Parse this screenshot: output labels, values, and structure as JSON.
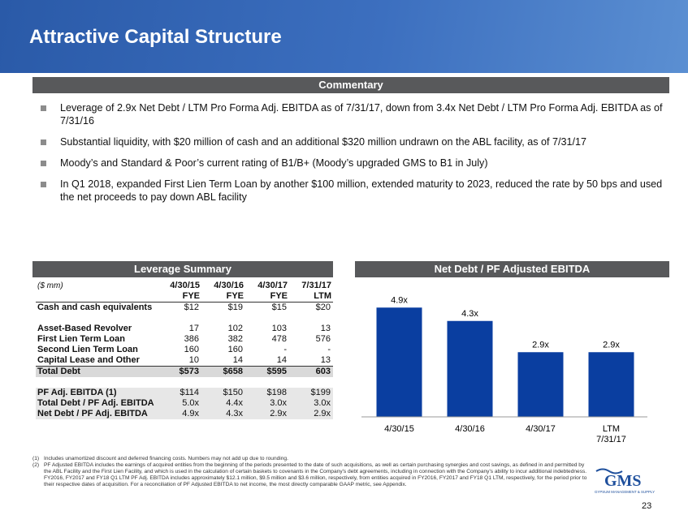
{
  "header": {
    "title": "Attractive Capital Structure"
  },
  "commentary": {
    "title": "Commentary",
    "bullets": [
      "Leverage of 2.9x Net Debt / LTM Pro Forma Adj. EBITDA as of 7/31/17, down from 3.4x Net Debt / LTM Pro Forma Adj. EBITDA as of 7/31/16",
      "Substantial liquidity, with $20 million of cash and an additional $320 million undrawn on the ABL facility, as of 7/31/17",
      "Moody’s and Standard & Poor’s current rating of B1/B+ (Moody’s upgraded GMS to B1 in July)",
      "In Q1 2018, expanded First Lien Term Loan by another $100 million, extended maturity to 2023, reduced the rate by 50 bps and used the net proceeds to pay down ABL facility"
    ]
  },
  "leverage": {
    "title": "Leverage Summary",
    "units": "($ mm)",
    "columns": [
      {
        "date": "4/30/15",
        "period": "FYE"
      },
      {
        "date": "4/30/16",
        "period": "FYE"
      },
      {
        "date": "4/30/17",
        "period": "FYE"
      },
      {
        "date": "7/31/17",
        "period": "LTM"
      }
    ],
    "cash": {
      "label": "Cash and cash equivalents",
      "values": [
        "$12",
        "$19",
        "$15",
        "$20"
      ]
    },
    "debt_rows": [
      {
        "label": "Asset-Based Revolver",
        "values": [
          "17",
          "102",
          "103",
          "13"
        ]
      },
      {
        "label": "First Lien Term Loan",
        "values": [
          "386",
          "382",
          "478",
          "576"
        ]
      },
      {
        "label": "Second Lien Term Loan",
        "values": [
          "160",
          "160",
          "-",
          "-"
        ]
      },
      {
        "label": "Capital Lease and Other",
        "values": [
          "10",
          "14",
          "14",
          "13"
        ]
      }
    ],
    "total_debt": {
      "label": "Total Debt",
      "values": [
        "$573",
        "$658",
        "$595",
        "603"
      ]
    },
    "metrics": [
      {
        "label": "PF Adj. EBITDA (1)",
        "values": [
          "$114",
          "$150",
          "$198",
          "$199"
        ]
      },
      {
        "label": "Total Debt / PF Adj. EBITDA",
        "values": [
          "5.0x",
          "4.4x",
          "3.0x",
          "3.0x"
        ]
      },
      {
        "label": "Net Debt / PF Adj. EBITDA",
        "values": [
          "4.9x",
          "4.3x",
          "2.9x",
          "2.9x"
        ]
      }
    ]
  },
  "chart_panel": {
    "title": "Net Debt / PF Adjusted EBITDA"
  },
  "chart_data": {
    "type": "bar",
    "title": "Net Debt / PF Adjusted EBITDA",
    "categories": [
      [
        "4/30/15"
      ],
      [
        "4/30/16"
      ],
      [
        "4/30/17"
      ],
      [
        "LTM",
        "7/31/17"
      ]
    ],
    "values": [
      4.9,
      4.3,
      2.9,
      2.9
    ],
    "data_labels": [
      "4.9x",
      "4.3x",
      "2.9x",
      "2.9x"
    ],
    "ylim": [
      0,
      5.2
    ],
    "grid": false,
    "color": "#0a3ea0"
  },
  "footnotes": [
    {
      "num": "(1)",
      "text": "Includes unamortized discount and deferred financing costs. Numbers may not add up due to rounding."
    },
    {
      "num": "(2)",
      "text": "PF Adjusted EBITDA includes the earnings of acquired entities from the beginning of the periods presented to the date of such acquisitions, as well as certain purchasing synergies and cost savings, as defined in and permitted by the ABL Facility and the First Lien Facility, and which is used in the calculation of certain baskets to covenants in the Company's debt agreements, including in connection with the Company's ability to incur additional indebtedness. FY2016, FY2017 and FY18 Q1 LTM PF Adj. EBITDA includes approximately $12.1 million, $9.5 million and $3.6 million, respectively, from entities acquired in FY2016, FY2017 and FY18 Q1 LTM, respectively, for the period prior to their respective dates of acquisition. For a reconciliation of PF Adjusted EBITDA to net income, the most directly comparable GAAP metric, see Appendix."
    }
  ],
  "logo": {
    "text": "GMS",
    "tagline": "GYPSUM MANAGEMENT & SUPPLY"
  },
  "page_number": "23"
}
